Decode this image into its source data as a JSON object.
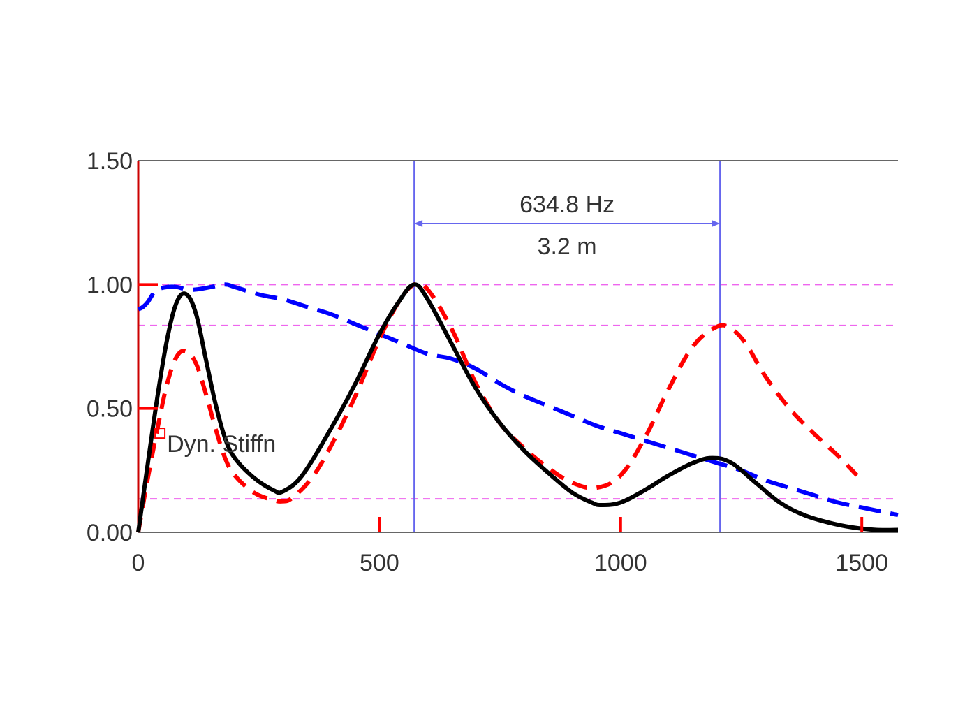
{
  "chart_data": {
    "type": "line",
    "title": "",
    "xlabel": "",
    "ylabel": "",
    "xlim": [
      0,
      1575
    ],
    "ylim": [
      0,
      1.5
    ],
    "x_ticks": [
      "0",
      "500",
      "1000",
      "1500"
    ],
    "x_tick_values": [
      0,
      500,
      1000,
      1500
    ],
    "y_ticks": [
      "0.00",
      "0.50",
      "1.00",
      "1.50"
    ],
    "y_tick_values": [
      0,
      0.5,
      1.0,
      1.5
    ],
    "grid": false,
    "reference_lines_y": [
      1.0,
      0.835,
      0.135
    ],
    "reference_line_color": "#ee66ee",
    "cursors": {
      "x1": 572,
      "x2": 1206,
      "color": "#6666ee",
      "delta_label": "634.8 Hz",
      "distance_label": "3.2 m"
    },
    "series": [
      {
        "color": "#000000",
        "style": "solid",
        "x": [
          0,
          20,
          40,
          60,
          80,
          100,
          120,
          140,
          160,
          180,
          200,
          240,
          280,
          300,
          340,
          400,
          450,
          500,
          540,
          572,
          600,
          650,
          700,
          750,
          800,
          850,
          900,
          940,
          960,
          1000,
          1050,
          1100,
          1150,
          1190,
          1230,
          1280,
          1330,
          1380,
          1430,
          1480,
          1530,
          1575
        ],
        "y": [
          0,
          0.28,
          0.55,
          0.78,
          0.93,
          0.96,
          0.88,
          0.7,
          0.52,
          0.38,
          0.3,
          0.22,
          0.17,
          0.165,
          0.23,
          0.42,
          0.6,
          0.8,
          0.93,
          1.0,
          0.94,
          0.76,
          0.58,
          0.44,
          0.33,
          0.24,
          0.16,
          0.12,
          0.11,
          0.12,
          0.17,
          0.23,
          0.28,
          0.3,
          0.28,
          0.2,
          0.12,
          0.07,
          0.04,
          0.02,
          0.01,
          0.01
        ]
      },
      {
        "color": "#ff0000",
        "style": "dashed",
        "x": [
          0,
          20,
          40,
          60,
          80,
          100,
          120,
          140,
          160,
          180,
          200,
          240,
          280,
          300,
          320,
          360,
          400,
          450,
          500,
          540,
          572,
          600,
          650,
          700,
          750,
          800,
          850,
          900,
          950,
          1000,
          1050,
          1100,
          1150,
          1200,
          1230,
          1260,
          1300,
          1350,
          1400,
          1450,
          1490
        ],
        "y": [
          0,
          0.22,
          0.42,
          0.6,
          0.71,
          0.73,
          0.68,
          0.56,
          0.42,
          0.3,
          0.23,
          0.16,
          0.13,
          0.125,
          0.14,
          0.22,
          0.35,
          0.55,
          0.78,
          0.93,
          1.0,
          0.98,
          0.82,
          0.6,
          0.44,
          0.34,
          0.26,
          0.2,
          0.18,
          0.23,
          0.38,
          0.58,
          0.75,
          0.83,
          0.82,
          0.76,
          0.63,
          0.5,
          0.4,
          0.31,
          0.23
        ]
      },
      {
        "color": "#0000ff",
        "style": "dashed",
        "x": [
          0,
          10,
          20,
          30,
          40,
          60,
          80,
          100,
          120,
          150,
          180,
          200,
          250,
          300,
          350,
          400,
          450,
          500,
          550,
          600,
          650,
          700,
          750,
          800,
          850,
          900,
          950,
          1000,
          1050,
          1100,
          1150,
          1200,
          1250,
          1300,
          1350,
          1400,
          1450,
          1500,
          1575
        ],
        "y": [
          0.9,
          0.91,
          0.93,
          0.96,
          0.98,
          0.99,
          0.99,
          0.98,
          0.98,
          0.99,
          1.0,
          0.99,
          0.96,
          0.94,
          0.91,
          0.88,
          0.84,
          0.8,
          0.76,
          0.72,
          0.7,
          0.66,
          0.6,
          0.55,
          0.51,
          0.47,
          0.43,
          0.4,
          0.37,
          0.34,
          0.31,
          0.28,
          0.25,
          0.21,
          0.18,
          0.15,
          0.12,
          0.1,
          0.07
        ]
      }
    ],
    "annotations": [
      {
        "text": "Dyn. Stiffn",
        "x": 45,
        "y": 0.4,
        "marker_color": "#ff0000"
      }
    ],
    "y_axis_color": "#cc0000",
    "y_tick_marks_color": "#ff0000",
    "x_tick_marks_color": "#ff0000",
    "frame_color": "#666666"
  }
}
